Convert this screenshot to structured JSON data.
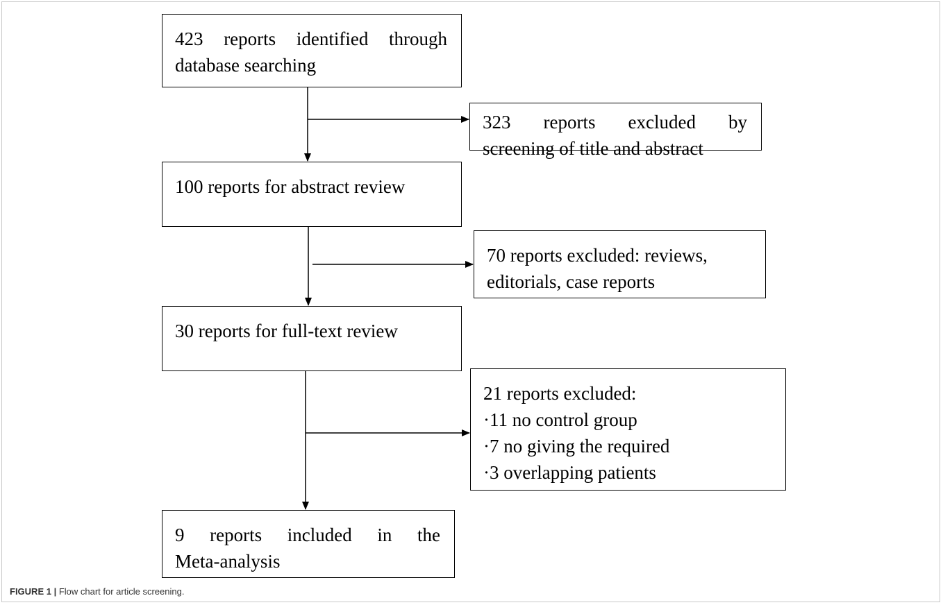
{
  "nodes": [
    {
      "lines": [
        "423 reports identified through",
        "database searching"
      ]
    },
    {
      "lines": [
        "323 reports excluded by",
        "screening of title and abstract"
      ]
    },
    {
      "lines": [
        "100 reports for abstract review"
      ]
    },
    {
      "lines": [
        "70 reports excluded: reviews,",
        "editorials, case reports"
      ]
    },
    {
      "lines": [
        "30 reports for full-text review"
      ]
    },
    {
      "lines": [
        "21 reports excluded:",
        "·11 no control group",
        "·7 no giving the required",
        "·3 overlapping patients"
      ]
    },
    {
      "lines": [
        "9 reports included in the",
        "Meta-analysis"
      ]
    }
  ],
  "caption": {
    "label": "FIGURE 1 |",
    "text": "Flow chart for article screening."
  }
}
